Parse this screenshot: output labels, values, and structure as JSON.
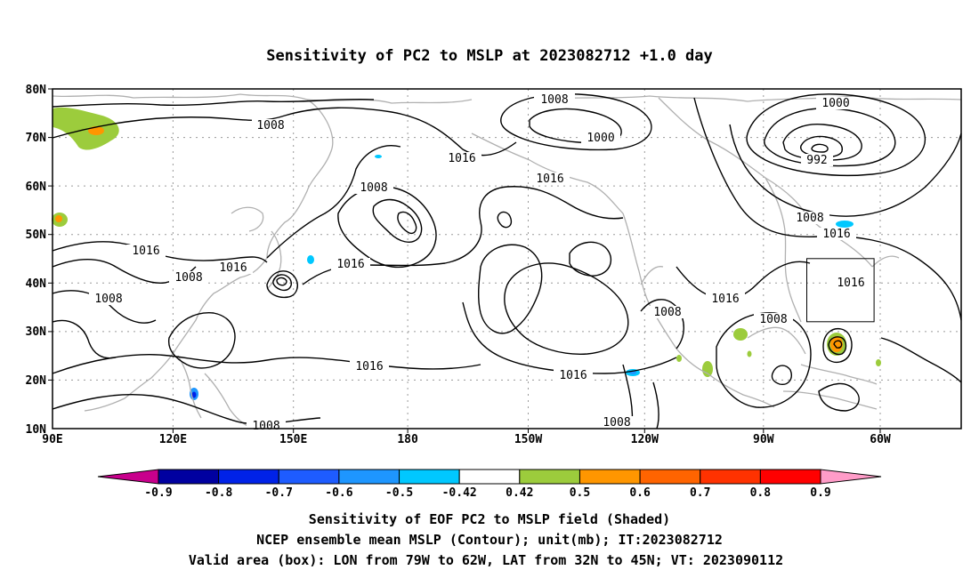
{
  "title": "Sensitivity of PC2 to MSLP at 2023082712 +1.0 day",
  "lat_labels": [
    "80N",
    "70N",
    "60N",
    "50N",
    "40N",
    "30N",
    "20N",
    "10N"
  ],
  "lon_labels": [
    "90E",
    "120E",
    "150E",
    "180",
    "150W",
    "120W",
    "90W",
    "60W"
  ],
  "contour_labels": {
    "c1008_a": "1008",
    "c1008_b": "1008",
    "c1008_c": "1008",
    "c1008_d": "1008",
    "c1008_e": "1008",
    "c1008_f": "1008",
    "c1008_g": "1008",
    "c1008_h": "1008",
    "c1008_i": "1008",
    "c1008_j": "1008",
    "c1016_a": "1016",
    "c1016_b": "1016",
    "c1016_c": "1016",
    "c1016_d": "1016",
    "c1016_e": "1016",
    "c1016_f": "1016",
    "c1016_g": "1016",
    "c1016_h": "1016",
    "c1016_i": "1016",
    "c1000_a": "1000",
    "c1000_b": "1000",
    "c992": "992"
  },
  "colorbar": {
    "labels": [
      "-0.9",
      "-0.8",
      "-0.7",
      "-0.6",
      "-0.5",
      "-0.42",
      "0.42",
      "0.5",
      "0.6",
      "0.7",
      "0.8",
      "0.9"
    ],
    "colors": [
      "#0000a0",
      "#0022e8",
      "#1e5cff",
      "#1e96ff",
      "#00c8ff",
      "#ffffff",
      "#9ccc3c",
      "#ff9600",
      "#ff6400",
      "#ff3200",
      "#ff0000"
    ],
    "low_color": "#c8008c",
    "high_color": "#ff9cc8"
  },
  "valid_box": {
    "lon_from": -79,
    "lon_to": -62,
    "lat_from": 32,
    "lat_to": 45
  },
  "footer": {
    "line1": "Sensitivity of EOF PC2 to MSLP field (Shaded)",
    "line2": "NCEP ensemble mean MSLP (Contour); unit(mb); IT:2023082712",
    "line3": "Valid area (box): LON from 79W to 62W, LAT from 32N to 45N; VT: 2023090112"
  }
}
